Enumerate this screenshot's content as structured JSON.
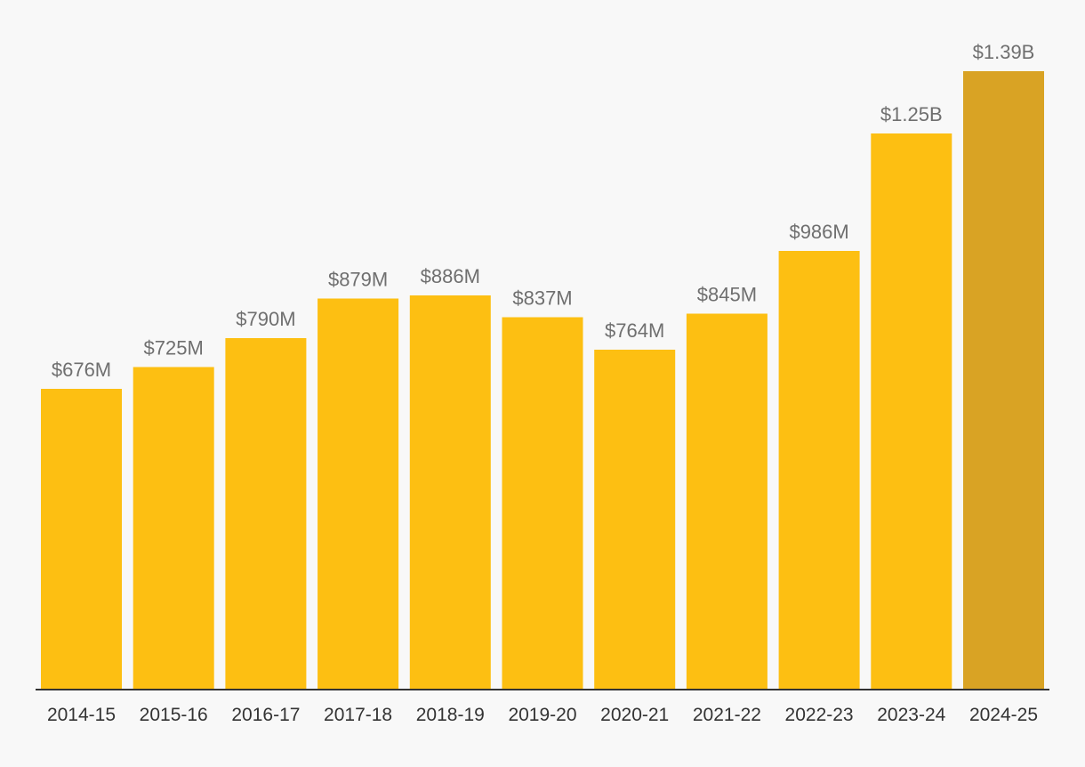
{
  "chart_data": {
    "type": "bar",
    "title": "",
    "xlabel": "",
    "ylabel": "",
    "ylim": [
      0,
      1400
    ],
    "grid": false,
    "categories": [
      "2014-15",
      "2015-16",
      "2016-17",
      "2017-18",
      "2018-19",
      "2019-20",
      "2020-21",
      "2021-22",
      "2022-23",
      "2023-24",
      "2024-25"
    ],
    "values": [
      676,
      725,
      790,
      879,
      886,
      837,
      764,
      845,
      986,
      1250,
      1390
    ],
    "value_unit": "millions of dollars",
    "data_labels": [
      "$676M",
      "$725M",
      "$790M",
      "$879M",
      "$886M",
      "$837M",
      "$764M",
      "$845M",
      "$986M",
      "$1.25B",
      "$1.39B"
    ],
    "highlight_index": 10
  },
  "colors": {
    "bar": "#fdbf12",
    "bar_highlight": "#d9a324",
    "axis": "#333333",
    "background": "#f8f8f8"
  }
}
